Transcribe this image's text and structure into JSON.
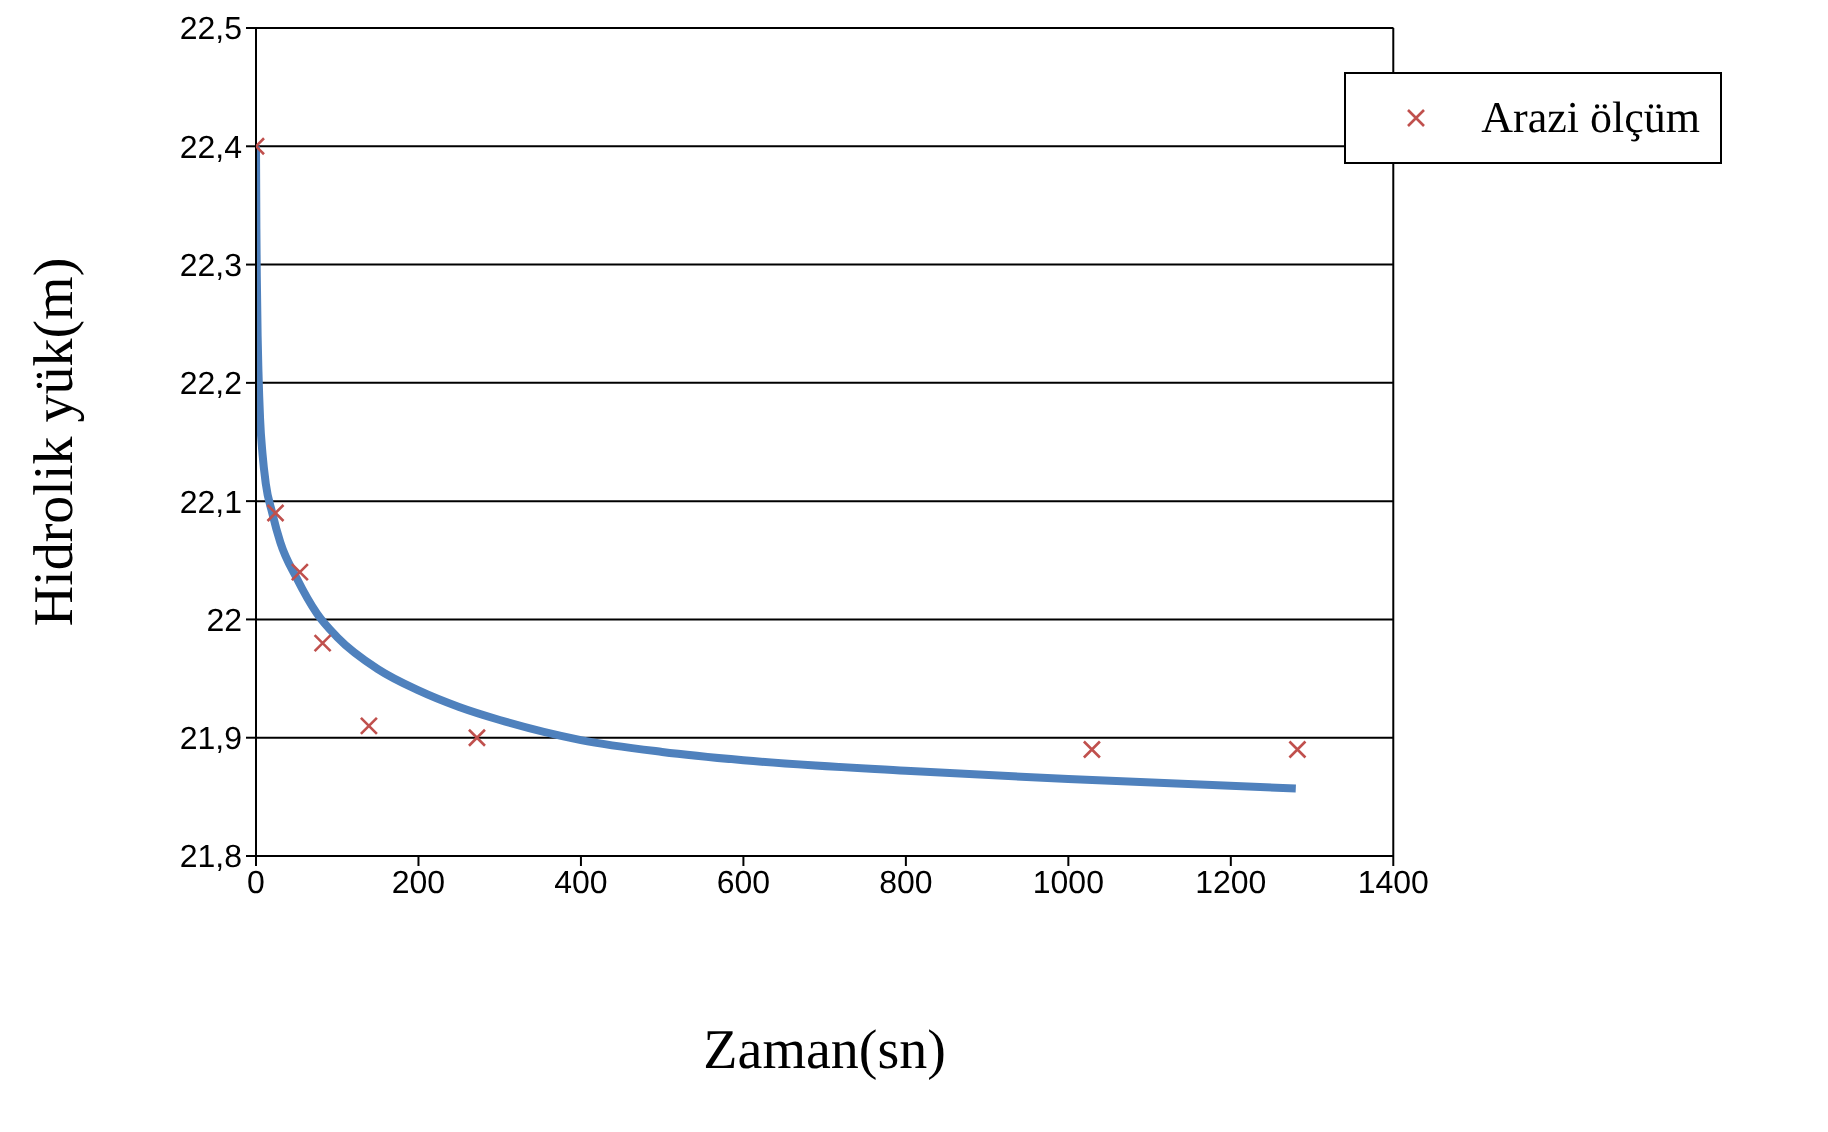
{
  "chart_data": {
    "type": "line",
    "xlabel": "Zaman(sn)",
    "ylabel": "Hidrolik yük(m)",
    "xlim": [
      0,
      1400
    ],
    "xticks": [
      0,
      200,
      400,
      600,
      800,
      1000,
      1200,
      1400
    ],
    "ylim": [
      21.8,
      22.5
    ],
    "yticks": [
      {
        "value": 21.8,
        "label": "21,8"
      },
      {
        "value": 21.9,
        "label": "21,9"
      },
      {
        "value": 22,
        "label": "22"
      },
      {
        "value": 22.1,
        "label": "22,1"
      },
      {
        "value": 22.2,
        "label": "22,2"
      },
      {
        "value": 22.3,
        "label": "22,3"
      },
      {
        "value": 22.4,
        "label": "22,4"
      },
      {
        "value": 22.5,
        "label": "22,5"
      }
    ],
    "grid": "y",
    "legend": "top right",
    "series": [
      {
        "color": "#4f81bd",
        "marker": "none",
        "x": [
          0,
          0.5,
          1,
          2,
          3,
          5,
          8,
          12,
          20,
          30,
          50,
          75,
          100,
          150,
          200,
          250,
          300,
          400,
          500,
          600,
          800,
          1000,
          1280
        ],
        "values": [
          22.4,
          22.33,
          22.29,
          22.24,
          22.21,
          22.17,
          22.14,
          22.115,
          22.09,
          22.065,
          22.035,
          22.005,
          21.985,
          21.958,
          21.94,
          21.926,
          21.915,
          21.898,
          21.888,
          21.881,
          21.872,
          21.865,
          21.857
        ]
      },
      {
        "type": "scatter",
        "name": "Arazi ölçüm",
        "color": "#c0504d",
        "marker": "cross",
        "x": [
          0,
          24,
          54,
          82,
          139,
          272,
          1029,
          1282
        ],
        "values": [
          22.4,
          22.09,
          22.04,
          21.98,
          21.91,
          21.9,
          21.89,
          21.89
        ]
      }
    ]
  }
}
